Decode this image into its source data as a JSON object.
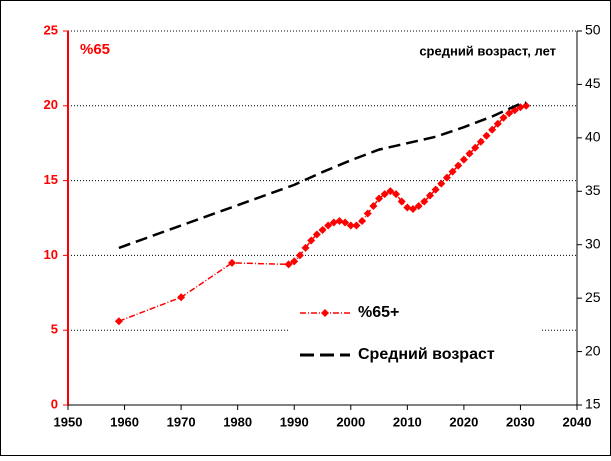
{
  "chart_data": {
    "type": "line",
    "title": "%65",
    "y2_title": "средний возраст, лет",
    "xlim": [
      1950,
      2040
    ],
    "xticks": [
      1950,
      1960,
      1970,
      1980,
      1990,
      2000,
      2010,
      2020,
      2030,
      2040
    ],
    "ylim": [
      0,
      25
    ],
    "yticks": [
      0,
      5,
      10,
      15,
      20,
      25
    ],
    "y2lim": [
      15,
      50
    ],
    "y2ticks": [
      15,
      20,
      25,
      30,
      35,
      40,
      45,
      50
    ],
    "grid": true,
    "legend": "center",
    "series": [
      {
        "name": "%65+",
        "color": "#ff0000",
        "axis": "y",
        "x": [
          1959,
          1970,
          1979,
          1989,
          1990,
          1991,
          1992,
          1993,
          1994,
          1995,
          1996,
          1997,
          1998,
          1999,
          2000,
          2001,
          2002,
          2003,
          2004,
          2005,
          2006,
          2007,
          2008,
          2009,
          2010,
          2011,
          2012,
          2013,
          2014,
          2015,
          2016,
          2017,
          2018,
          2019,
          2020,
          2021,
          2022,
          2023,
          2024,
          2025,
          2026,
          2027,
          2028,
          2029,
          2030,
          2031
        ],
        "values": [
          5.6,
          7.2,
          9.5,
          9.4,
          9.6,
          10.0,
          10.5,
          11.0,
          11.4,
          11.7,
          12.0,
          12.2,
          12.3,
          12.2,
          12.0,
          12.0,
          12.3,
          12.8,
          13.3,
          13.8,
          14.1,
          14.3,
          14.1,
          13.6,
          13.2,
          13.1,
          13.3,
          13.6,
          14.0,
          14.4,
          14.8,
          15.2,
          15.6,
          16.0,
          16.4,
          16.8,
          17.2,
          17.6,
          18.0,
          18.4,
          18.8,
          19.2,
          19.5,
          19.7,
          19.9,
          20.0
        ]
      },
      {
        "name": "Средний возраст",
        "color": "#000000",
        "axis": "y2",
        "x": [
          1959,
          1970,
          1980,
          1990,
          1995,
          2000,
          2005,
          2010,
          2015,
          2020,
          2025,
          2030,
          2031
        ],
        "values": [
          29.7,
          31.8,
          33.7,
          35.6,
          36.8,
          37.9,
          38.9,
          39.5,
          40.1,
          41.0,
          42.0,
          43.2,
          43.3
        ]
      }
    ]
  }
}
